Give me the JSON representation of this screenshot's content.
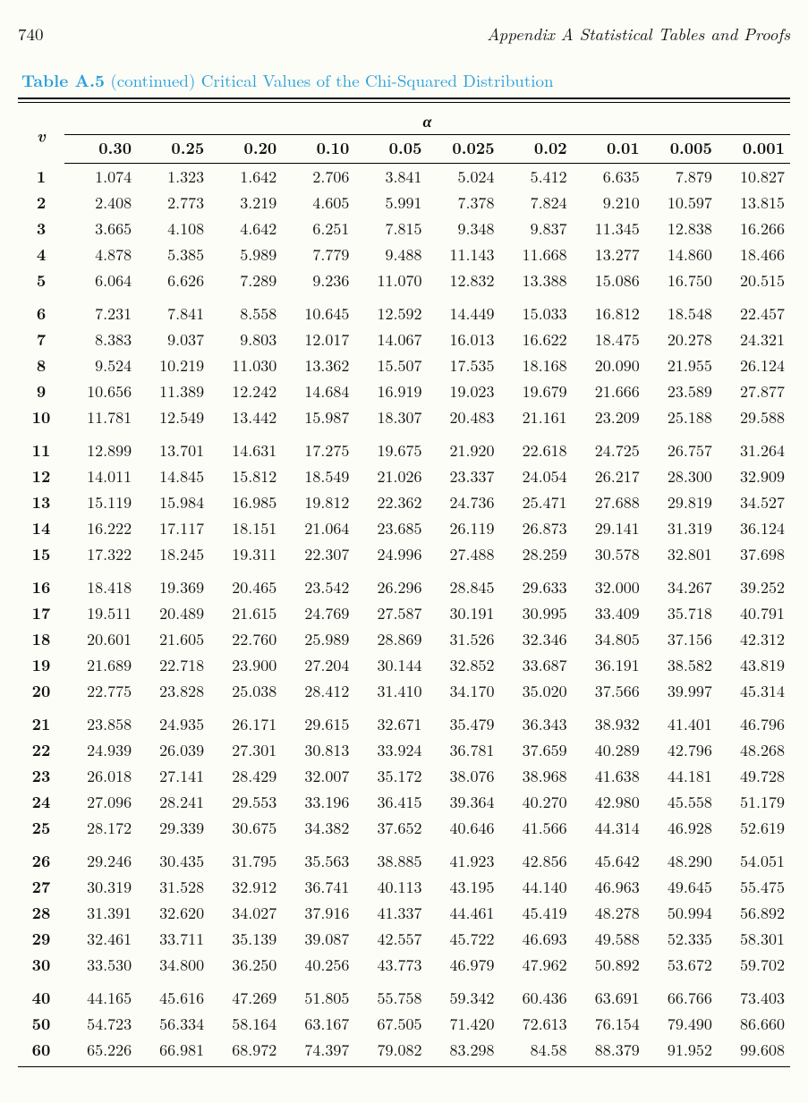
{
  "page_number": "740",
  "appendix_line": "Appendix A   Statistical Tables and Proofs",
  "caption": {
    "label": "Table A.5",
    "cont": "(continued)",
    "title": "Critical Values of the Chi-Squared Distribution"
  },
  "table": {
    "type": "table",
    "row_header": "v",
    "super_header": "α",
    "alpha_levels": [
      "0.30",
      "0.25",
      "0.20",
      "0.10",
      "0.05",
      "0.025",
      "0.02",
      "0.01",
      "0.005",
      "0.001"
    ],
    "groups": [
      {
        "rows": [
          {
            "v": "1",
            "cells": [
              "1.074",
              "1.323",
              "1.642",
              "2.706",
              "3.841",
              "5.024",
              "5.412",
              "6.635",
              "7.879",
              "10.827"
            ]
          },
          {
            "v": "2",
            "cells": [
              "2.408",
              "2.773",
              "3.219",
              "4.605",
              "5.991",
              "7.378",
              "7.824",
              "9.210",
              "10.597",
              "13.815"
            ]
          },
          {
            "v": "3",
            "cells": [
              "3.665",
              "4.108",
              "4.642",
              "6.251",
              "7.815",
              "9.348",
              "9.837",
              "11.345",
              "12.838",
              "16.266"
            ]
          },
          {
            "v": "4",
            "cells": [
              "4.878",
              "5.385",
              "5.989",
              "7.779",
              "9.488",
              "11.143",
              "11.668",
              "13.277",
              "14.860",
              "18.466"
            ]
          },
          {
            "v": "5",
            "cells": [
              "6.064",
              "6.626",
              "7.289",
              "9.236",
              "11.070",
              "12.832",
              "13.388",
              "15.086",
              "16.750",
              "20.515"
            ]
          }
        ]
      },
      {
        "rows": [
          {
            "v": "6",
            "cells": [
              "7.231",
              "7.841",
              "8.558",
              "10.645",
              "12.592",
              "14.449",
              "15.033",
              "16.812",
              "18.548",
              "22.457"
            ]
          },
          {
            "v": "7",
            "cells": [
              "8.383",
              "9.037",
              "9.803",
              "12.017",
              "14.067",
              "16.013",
              "16.622",
              "18.475",
              "20.278",
              "24.321"
            ]
          },
          {
            "v": "8",
            "cells": [
              "9.524",
              "10.219",
              "11.030",
              "13.362",
              "15.507",
              "17.535",
              "18.168",
              "20.090",
              "21.955",
              "26.124"
            ]
          },
          {
            "v": "9",
            "cells": [
              "10.656",
              "11.389",
              "12.242",
              "14.684",
              "16.919",
              "19.023",
              "19.679",
              "21.666",
              "23.589",
              "27.877"
            ]
          },
          {
            "v": "10",
            "cells": [
              "11.781",
              "12.549",
              "13.442",
              "15.987",
              "18.307",
              "20.483",
              "21.161",
              "23.209",
              "25.188",
              "29.588"
            ]
          }
        ]
      },
      {
        "rows": [
          {
            "v": "11",
            "cells": [
              "12.899",
              "13.701",
              "14.631",
              "17.275",
              "19.675",
              "21.920",
              "22.618",
              "24.725",
              "26.757",
              "31.264"
            ]
          },
          {
            "v": "12",
            "cells": [
              "14.011",
              "14.845",
              "15.812",
              "18.549",
              "21.026",
              "23.337",
              "24.054",
              "26.217",
              "28.300",
              "32.909"
            ]
          },
          {
            "v": "13",
            "cells": [
              "15.119",
              "15.984",
              "16.985",
              "19.812",
              "22.362",
              "24.736",
              "25.471",
              "27.688",
              "29.819",
              "34.527"
            ]
          },
          {
            "v": "14",
            "cells": [
              "16.222",
              "17.117",
              "18.151",
              "21.064",
              "23.685",
              "26.119",
              "26.873",
              "29.141",
              "31.319",
              "36.124"
            ]
          },
          {
            "v": "15",
            "cells": [
              "17.322",
              "18.245",
              "19.311",
              "22.307",
              "24.996",
              "27.488",
              "28.259",
              "30.578",
              "32.801",
              "37.698"
            ]
          }
        ]
      },
      {
        "rows": [
          {
            "v": "16",
            "cells": [
              "18.418",
              "19.369",
              "20.465",
              "23.542",
              "26.296",
              "28.845",
              "29.633",
              "32.000",
              "34.267",
              "39.252"
            ]
          },
          {
            "v": "17",
            "cells": [
              "19.511",
              "20.489",
              "21.615",
              "24.769",
              "27.587",
              "30.191",
              "30.995",
              "33.409",
              "35.718",
              "40.791"
            ]
          },
          {
            "v": "18",
            "cells": [
              "20.601",
              "21.605",
              "22.760",
              "25.989",
              "28.869",
              "31.526",
              "32.346",
              "34.805",
              "37.156",
              "42.312"
            ]
          },
          {
            "v": "19",
            "cells": [
              "21.689",
              "22.718",
              "23.900",
              "27.204",
              "30.144",
              "32.852",
              "33.687",
              "36.191",
              "38.582",
              "43.819"
            ]
          },
          {
            "v": "20",
            "cells": [
              "22.775",
              "23.828",
              "25.038",
              "28.412",
              "31.410",
              "34.170",
              "35.020",
              "37.566",
              "39.997",
              "45.314"
            ]
          }
        ]
      },
      {
        "rows": [
          {
            "v": "21",
            "cells": [
              "23.858",
              "24.935",
              "26.171",
              "29.615",
              "32.671",
              "35.479",
              "36.343",
              "38.932",
              "41.401",
              "46.796"
            ]
          },
          {
            "v": "22",
            "cells": [
              "24.939",
              "26.039",
              "27.301",
              "30.813",
              "33.924",
              "36.781",
              "37.659",
              "40.289",
              "42.796",
              "48.268"
            ]
          },
          {
            "v": "23",
            "cells": [
              "26.018",
              "27.141",
              "28.429",
              "32.007",
              "35.172",
              "38.076",
              "38.968",
              "41.638",
              "44.181",
              "49.728"
            ]
          },
          {
            "v": "24",
            "cells": [
              "27.096",
              "28.241",
              "29.553",
              "33.196",
              "36.415",
              "39.364",
              "40.270",
              "42.980",
              "45.558",
              "51.179"
            ]
          },
          {
            "v": "25",
            "cells": [
              "28.172",
              "29.339",
              "30.675",
              "34.382",
              "37.652",
              "40.646",
              "41.566",
              "44.314",
              "46.928",
              "52.619"
            ]
          }
        ]
      },
      {
        "rows": [
          {
            "v": "26",
            "cells": [
              "29.246",
              "30.435",
              "31.795",
              "35.563",
              "38.885",
              "41.923",
              "42.856",
              "45.642",
              "48.290",
              "54.051"
            ]
          },
          {
            "v": "27",
            "cells": [
              "30.319",
              "31.528",
              "32.912",
              "36.741",
              "40.113",
              "43.195",
              "44.140",
              "46.963",
              "49.645",
              "55.475"
            ]
          },
          {
            "v": "28",
            "cells": [
              "31.391",
              "32.620",
              "34.027",
              "37.916",
              "41.337",
              "44.461",
              "45.419",
              "48.278",
              "50.994",
              "56.892"
            ]
          },
          {
            "v": "29",
            "cells": [
              "32.461",
              "33.711",
              "35.139",
              "39.087",
              "42.557",
              "45.722",
              "46.693",
              "49.588",
              "52.335",
              "58.301"
            ]
          },
          {
            "v": "30",
            "cells": [
              "33.530",
              "34.800",
              "36.250",
              "40.256",
              "43.773",
              "46.979",
              "47.962",
              "50.892",
              "53.672",
              "59.702"
            ]
          }
        ]
      },
      {
        "rows": [
          {
            "v": "40",
            "cells": [
              "44.165",
              "45.616",
              "47.269",
              "51.805",
              "55.758",
              "59.342",
              "60.436",
              "63.691",
              "66.766",
              "73.403"
            ]
          },
          {
            "v": "50",
            "cells": [
              "54.723",
              "56.334",
              "58.164",
              "63.167",
              "67.505",
              "71.420",
              "72.613",
              "76.154",
              "79.490",
              "86.660"
            ]
          },
          {
            "v": "60",
            "cells": [
              "65.226",
              "66.981",
              "68.972",
              "74.397",
              "79.082",
              "83.298",
              "84.58",
              "88.379",
              "91.952",
              "99.608"
            ]
          }
        ]
      }
    ],
    "colors": {
      "caption_accent": "#2aa0da",
      "text": "#111111",
      "background": "#fdfdf8",
      "rule": "#000000"
    },
    "font": {
      "body_size_pt": 13,
      "header_bold": true
    }
  }
}
